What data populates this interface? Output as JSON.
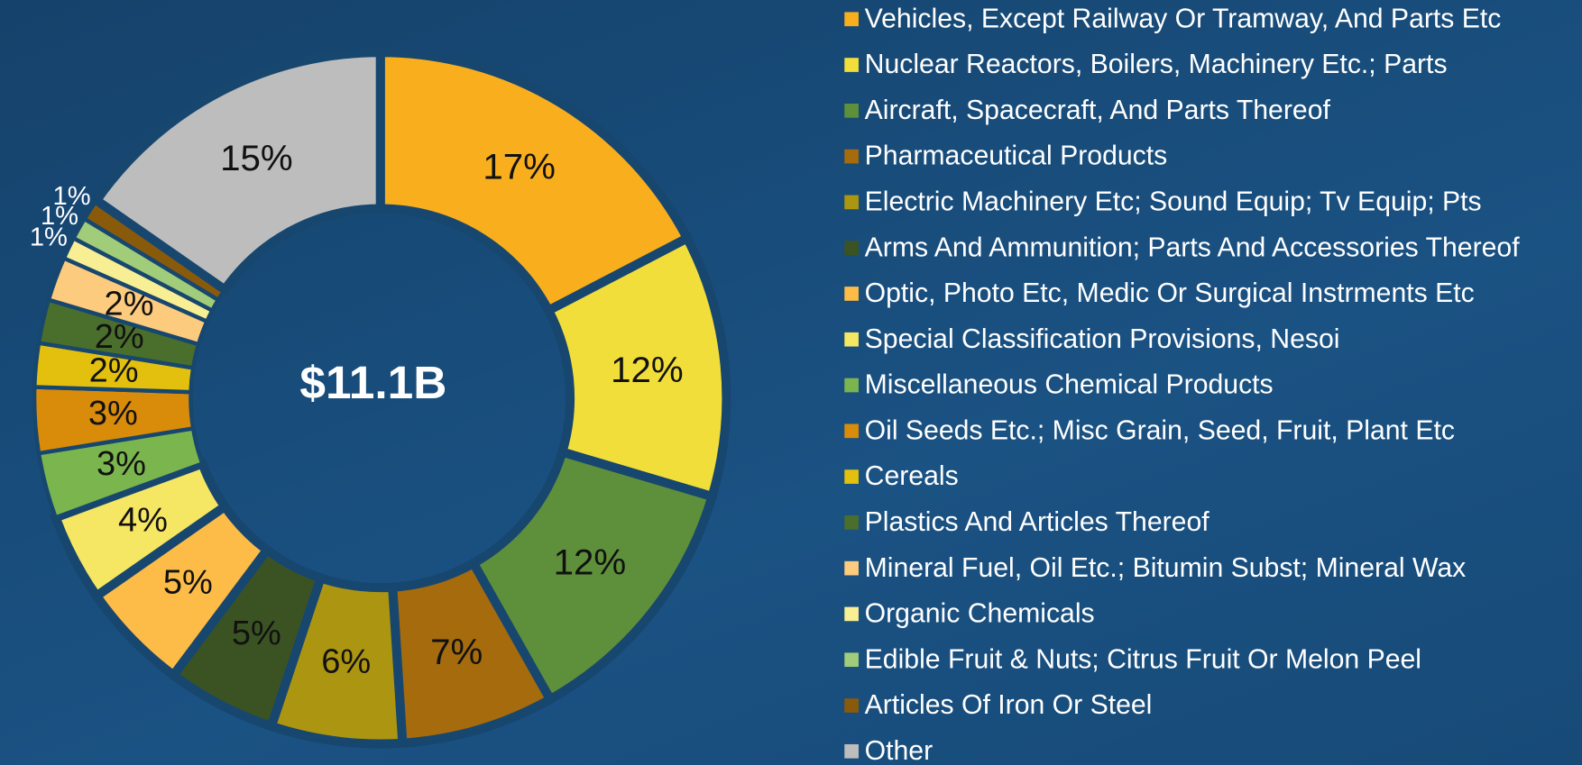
{
  "chart_data": {
    "type": "donut",
    "center_label": "$11.1B",
    "categories": [
      "Vehicles, Except Railway Or Tramway, And Parts Etc",
      "Nuclear Reactors, Boilers, Machinery Etc.; Parts",
      "Aircraft, Spacecraft, And Parts Thereof",
      "Pharmaceutical Products",
      "Electric Machinery Etc; Sound Equip; Tv Equip; Pts",
      "Arms And Ammunition; Parts And Accessories Thereof",
      "Optic, Photo Etc, Medic Or Surgical Instrments Etc",
      "Special Classification Provisions, Nesoi",
      "Miscellaneous Chemical Products",
      "Oil Seeds Etc.; Misc Grain, Seed, Fruit, Plant Etc",
      "Cereals",
      "Plastics And Articles Thereof",
      "Mineral Fuel, Oil Etc.; Bitumin Subst; Mineral Wax",
      "Organic Chemicals",
      "Edible Fruit & Nuts; Citrus Fruit Or Melon Peel",
      "Articles Of Iron Or Steel",
      "Other"
    ],
    "values": [
      17,
      12,
      12,
      7,
      6,
      5,
      5,
      4,
      3,
      3,
      2,
      2,
      2,
      1,
      1,
      1,
      15
    ],
    "value_labels": [
      "17%",
      "12%",
      "12%",
      "7%",
      "6%",
      "5%",
      "5%",
      "4%",
      "3%",
      "3%",
      "2%",
      "2%",
      "2%",
      "1%",
      "1%",
      "1%",
      "15%"
    ],
    "colors": [
      "#F9AE1E",
      "#F2DE3A",
      "#5E8F3A",
      "#A56B0C",
      "#AC9510",
      "#3B5323",
      "#FDBB48",
      "#F5E663",
      "#7AB54E",
      "#D98B0A",
      "#E2C00D",
      "#4A6E2C",
      "#FDCB7E",
      "#F8EE93",
      "#A1CC7A",
      "#8A5A0B",
      "#BDBDBD"
    ],
    "legend": "right"
  }
}
